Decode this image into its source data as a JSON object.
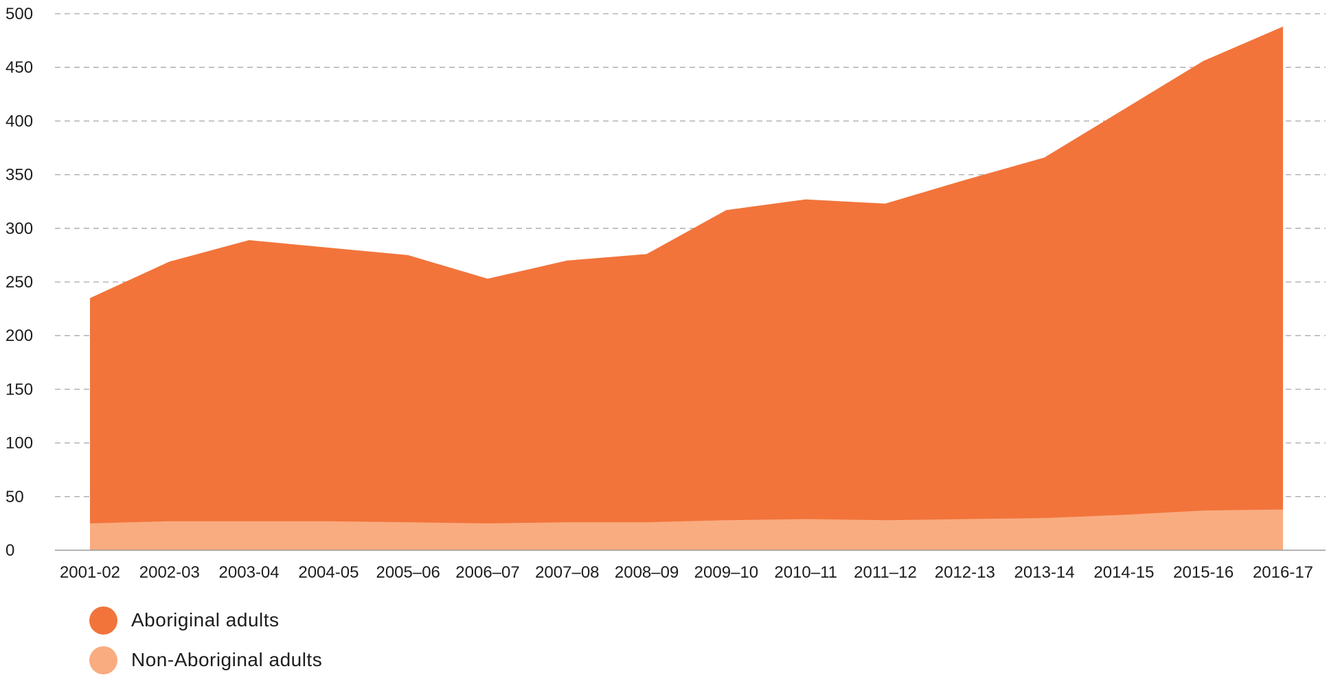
{
  "chart_data": {
    "type": "area",
    "stacked": true,
    "title": "",
    "xlabel": "",
    "ylabel": "",
    "ylim": [
      0,
      500
    ],
    "y_ticks": [
      0,
      50,
      100,
      150,
      200,
      250,
      300,
      350,
      400,
      450,
      500
    ],
    "grid": "horizontal dashed",
    "legend_position": "bottom-left",
    "categories": [
      "2001-02",
      "2002-03",
      "2003-04",
      "2004-05",
      "2005–06",
      "2006–07",
      "2007–08",
      "2008–09",
      "2009–10",
      "2010–11",
      "2011–12",
      "2012-13",
      "2013-14",
      "2014-15",
      "2015-16",
      "2016-17"
    ],
    "series": [
      {
        "name": "Aboriginal adults",
        "color": "#F2743B",
        "values": [
          210,
          242,
          262,
          255,
          249,
          228,
          244,
          250,
          289,
          298,
          295,
          316,
          336,
          378,
          419,
          450
        ]
      },
      {
        "name": "Non-Aboriginal adults",
        "color": "#F9AC80",
        "values": [
          25,
          27,
          27,
          27,
          26,
          25,
          26,
          26,
          28,
          29,
          28,
          29,
          30,
          33,
          37,
          38
        ]
      }
    ]
  }
}
